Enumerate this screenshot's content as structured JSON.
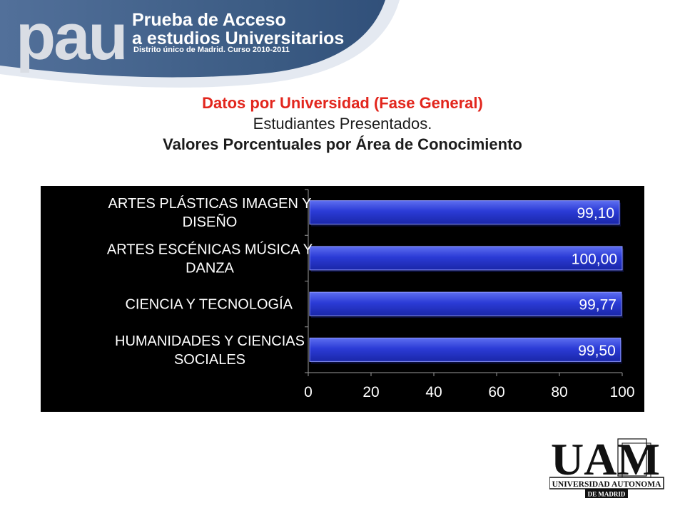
{
  "banner": {
    "logo": "pau",
    "line1": "Prueba de Acceso",
    "line2": "a estudios Universitarios",
    "line3": "Distrito único de Madrid. Curso 2010-2011"
  },
  "titles": {
    "line1": "Datos por Universidad (Fase General)",
    "line2": "Estudiantes Presentados.",
    "line3": "Valores Porcentuales por Área de Conocimiento"
  },
  "chart_data": {
    "type": "bar",
    "orientation": "horizontal",
    "categories": [
      [
        "ARTES PLÁSTICAS IMAGEN Y",
        "DISEÑO"
      ],
      [
        "ARTES ESCÉNICAS MÚSICA Y",
        "DANZA"
      ],
      [
        "CIENCIA Y TECNOLOGÍA"
      ],
      [
        "HUMANIDADES Y CIENCIAS",
        "SOCIALES"
      ]
    ],
    "values": [
      99.1,
      100.0,
      99.77,
      99.5
    ],
    "data_labels": [
      "99,10",
      "100,00",
      "99,77",
      "99,50"
    ],
    "xlim": [
      0,
      100
    ],
    "x_ticks": [
      "0",
      "20",
      "40",
      "60",
      "80",
      "100"
    ],
    "grid": false,
    "background": "#000000",
    "bar_color": "#2b3bd6",
    "label_color": "#ffffff"
  },
  "logo_uam": {
    "mark": "UAM",
    "line1": "UNIVERSIDAD AUTONOMA",
    "line2": "DE MADRID"
  },
  "colors": {
    "title_red": "#e2261d",
    "banner_blue": "#3b5b83"
  }
}
